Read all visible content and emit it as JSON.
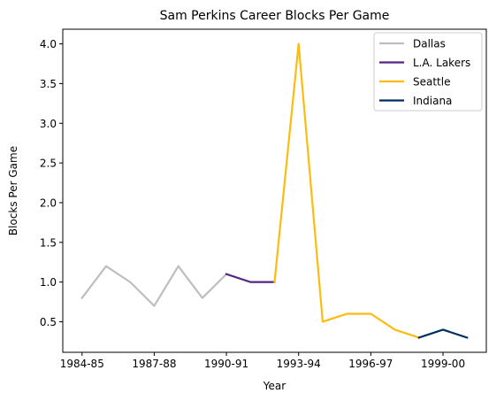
{
  "chart_data": {
    "type": "line",
    "title": "Sam Perkins Career Blocks Per Game",
    "xlabel": "Year",
    "ylabel": "Blocks Per Game",
    "x_tick_labels": [
      "1984-85",
      "1987-88",
      "1990-91",
      "1993-94",
      "1996-97",
      "1999-00"
    ],
    "y_ticks": [
      0.5,
      1.0,
      1.5,
      2.0,
      2.5,
      3.0,
      3.5,
      4.0
    ],
    "y_tick_labels": [
      "0.5",
      "1.0",
      "1.5",
      "2.0",
      "2.5",
      "3.0",
      "3.5",
      "4.0"
    ],
    "xlim": [
      -0.8,
      16.8
    ],
    "ylim": [
      0.115,
      4.185
    ],
    "grid": false,
    "legend_position": "top-right",
    "series": [
      {
        "name": "Dallas",
        "color": "#bebebe",
        "x": [
          0,
          1,
          2,
          3,
          4,
          5,
          6
        ],
        "values": [
          0.8,
          1.2,
          1.0,
          0.7,
          1.2,
          0.8,
          1.1
        ]
      },
      {
        "name": "L.A. Lakers",
        "color": "#552583",
        "x": [
          6,
          7,
          8
        ],
        "values": [
          1.1,
          1.0,
          1.0
        ]
      },
      {
        "name": "Seattle",
        "color": "#fdbb12",
        "x": [
          8,
          9,
          10,
          11,
          12,
          13,
          14
        ],
        "values": [
          1.0,
          4.0,
          0.5,
          0.6,
          0.6,
          0.4,
          0.3
        ]
      },
      {
        "name": "Indiana",
        "color": "#002d62",
        "x": [
          14,
          15,
          16
        ],
        "values": [
          0.3,
          0.4,
          0.3
        ]
      }
    ]
  }
}
